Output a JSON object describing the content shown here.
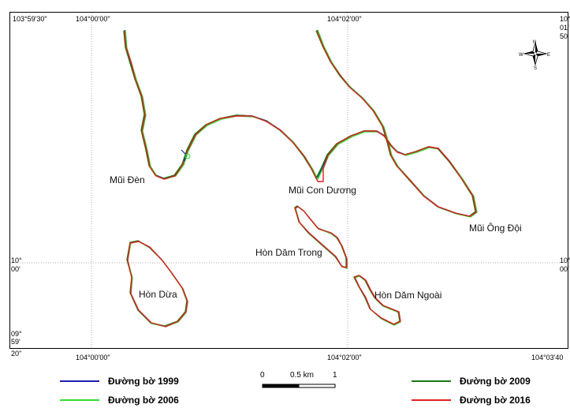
{
  "map": {
    "coords": {
      "top_left": "103°59'30\"",
      "top_1": "104°00'00\"",
      "top_2": "104°02'00\"",
      "right_top_1": "10°",
      "right_top_2": "01'",
      "right_top_3": "50",
      "left_mid_1": "10°",
      "left_mid_2": "00'",
      "right_mid_1": "10°",
      "right_mid_2": "00'",
      "left_bot_1": "09°",
      "left_bot_2": "59'",
      "left_bot_3": "20\"",
      "bottom_1": "104°00'00\"",
      "bottom_2": "104°02'00\"",
      "bottom_right": "104°03'40"
    },
    "places": {
      "mui_den": "Mũi Đèn",
      "mui_con_duong": "Mũi Con Dương",
      "mui_ong_doi": "Mũi Ông Đội",
      "hon_dam_trong": "Hòn Dăm Trong",
      "hon_dua": "Hòn Dừa",
      "hon_dam_ngoai": "Hòn Dăm Ngoài"
    },
    "compass": {
      "n": "N",
      "s": "S",
      "e": "E",
      "w": "W"
    }
  },
  "legend": {
    "items": [
      {
        "label": "Đường bờ 1999",
        "color": "#1f1fb0"
      },
      {
        "label": "Đường bờ 2006",
        "color": "#33dd33"
      },
      {
        "label": "Đường bờ 2009",
        "color": "#1a7a1a"
      },
      {
        "label": "Đường bờ 2016",
        "color": "#e02020"
      }
    ]
  },
  "scale": {
    "zero": "0",
    "mid": "0.5 km",
    "end": "1"
  }
}
